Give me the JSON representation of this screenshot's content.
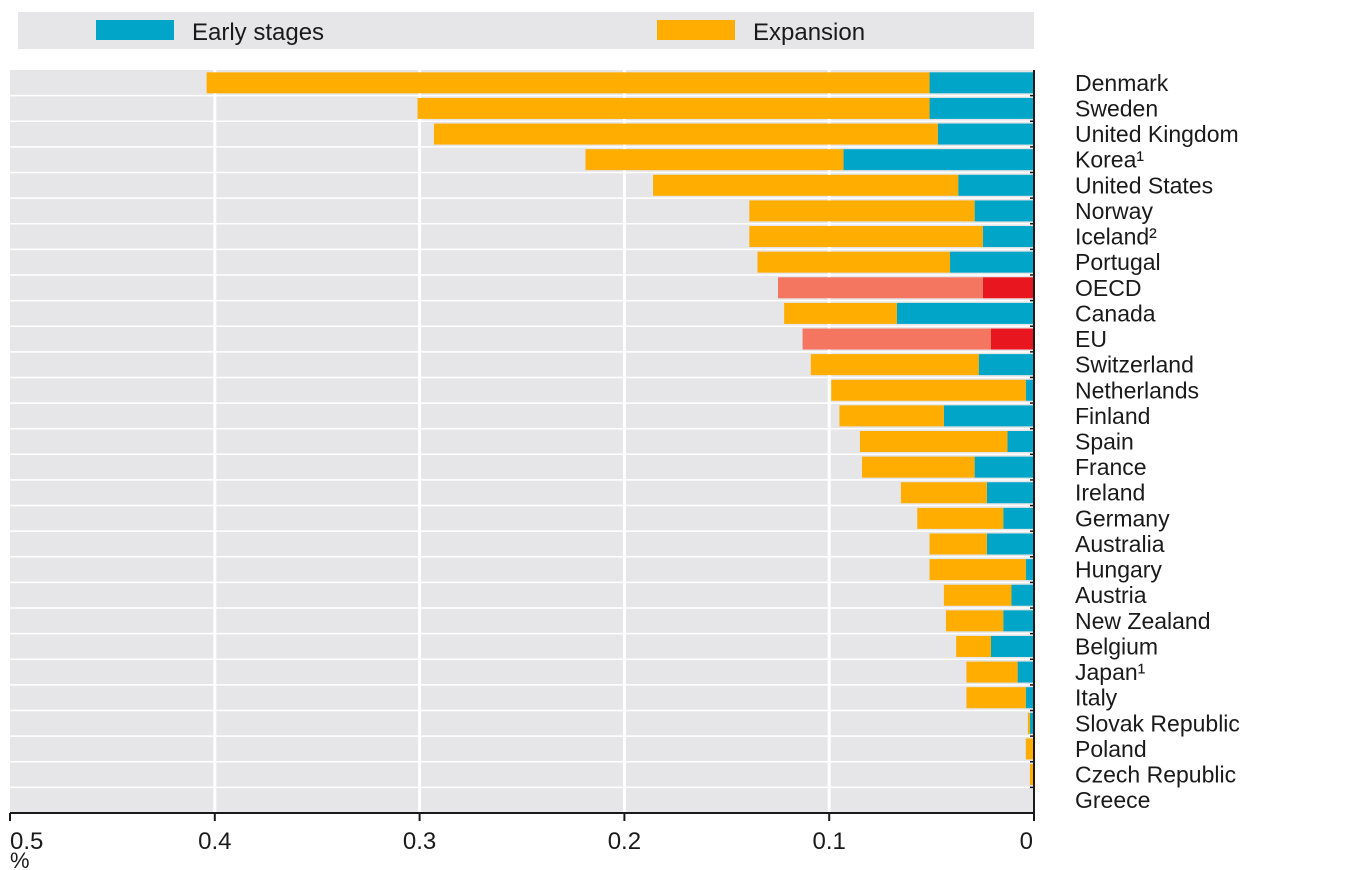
{
  "chart_data": {
    "type": "bar",
    "orientation": "horizontal",
    "stacked": true,
    "x_reversed": true,
    "categories": [
      "Denmark",
      "Sweden",
      "United Kingdom",
      "Korea¹",
      "United States",
      "Norway",
      "Iceland²",
      "Portugal",
      "OECD",
      "Canada",
      "EU",
      "Switzerland",
      "Netherlands",
      "Finland",
      "Spain",
      "France",
      "Ireland",
      "Germany",
      "Australia",
      "Hungary",
      "Austria",
      "New Zealand",
      "Belgium",
      "Japan¹",
      "Italy",
      "Slovak Republic",
      "Poland",
      "Czech Republic",
      "Greece"
    ],
    "series": [
      {
        "name": "Early stages",
        "color": "#00a5c8",
        "values": [
          0.051,
          0.051,
          0.047,
          0.093,
          0.037,
          0.029,
          0.025,
          0.041,
          0.025,
          0.067,
          0.021,
          0.027,
          0.004,
          0.044,
          0.013,
          0.029,
          0.023,
          0.015,
          0.023,
          0.004,
          0.011,
          0.015,
          0.021,
          0.008,
          0.004,
          0.002,
          0.0,
          0.0,
          0.0
        ]
      },
      {
        "name": "Expansion",
        "color": "#ffad00",
        "values": [
          0.353,
          0.25,
          0.246,
          0.126,
          0.149,
          0.11,
          0.114,
          0.094,
          0.1,
          0.055,
          0.092,
          0.082,
          0.095,
          0.051,
          0.072,
          0.055,
          0.042,
          0.042,
          0.028,
          0.047,
          0.033,
          0.028,
          0.017,
          0.025,
          0.029,
          0.001,
          0.004,
          0.002,
          0.0
        ]
      }
    ],
    "aggregate_colors": {
      "early": "#e8171f",
      "expansion": "#f47560"
    },
    "aggregates": [
      "OECD",
      "EU"
    ],
    "xlim": [
      0,
      0.5
    ],
    "xticks": [
      "0.5",
      "0.4",
      "0.3",
      "0.2",
      "0.1",
      "0"
    ],
    "xtick_values": [
      0.5,
      0.4,
      0.3,
      0.2,
      0.1,
      0
    ],
    "unit": "%",
    "grid": true,
    "legend_position": "top"
  }
}
